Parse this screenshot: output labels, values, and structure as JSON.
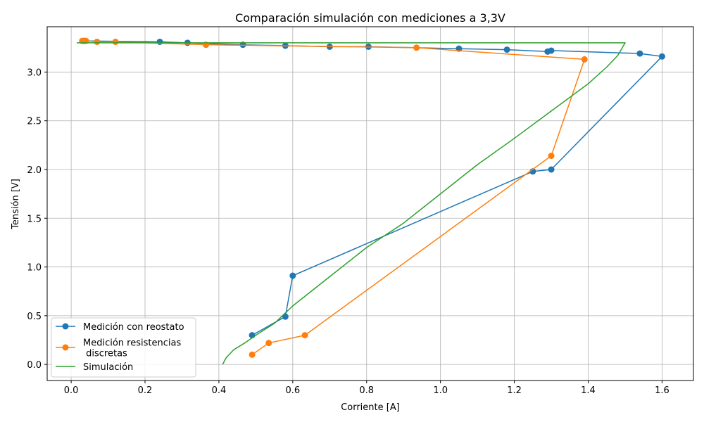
{
  "chart_data": {
    "type": "line",
    "title": "Comparación simulación con mediciones a 3,3V",
    "xlabel": "Corriente [A]",
    "ylabel": "Tensión [V]",
    "xlim": [
      -0.065,
      1.685
    ],
    "ylim": [
      -0.165,
      3.465
    ],
    "xticks": [
      "0.0",
      "0.2",
      "0.4",
      "0.6",
      "0.8",
      "1.0",
      "1.2",
      "1.4",
      "1.6"
    ],
    "yticks": [
      "0.0",
      "0.5",
      "1.0",
      "1.5",
      "2.0",
      "2.5",
      "3.0"
    ],
    "grid": true,
    "legend_position": "lower-left",
    "series": [
      {
        "name": "Medición con reostato",
        "color": "#1f77b4",
        "marker": "circle",
        "points": [
          [
            0.49,
            0.3
          ],
          [
            0.58,
            0.49
          ],
          [
            0.6,
            0.91
          ],
          [
            1.25,
            1.98
          ],
          [
            1.3,
            2.0
          ],
          [
            1.6,
            3.16
          ],
          [
            1.54,
            3.19
          ],
          [
            1.3,
            3.22
          ],
          [
            1.29,
            3.21
          ],
          [
            1.18,
            3.23
          ],
          [
            1.05,
            3.24
          ],
          [
            0.805,
            3.26
          ],
          [
            0.7,
            3.26
          ],
          [
            0.58,
            3.27
          ],
          [
            0.465,
            3.28
          ],
          [
            0.315,
            3.3
          ],
          [
            0.24,
            3.31
          ],
          [
            0.035,
            3.32
          ]
        ]
      },
      {
        "name": "Medición resistencias\n discretas",
        "color": "#ff7f0e",
        "marker": "circle",
        "points": [
          [
            0.49,
            0.1
          ],
          [
            0.535,
            0.22
          ],
          [
            0.633,
            0.3
          ],
          [
            1.3,
            2.14
          ],
          [
            1.39,
            3.13
          ],
          [
            0.935,
            3.25
          ],
          [
            0.365,
            3.28
          ],
          [
            0.12,
            3.31
          ],
          [
            0.07,
            3.31
          ],
          [
            0.04,
            3.32
          ],
          [
            0.03,
            3.32
          ]
        ]
      },
      {
        "name": "Simulación",
        "color": "#2ca02c",
        "marker": "none",
        "points": [
          [
            0.41,
            0.0
          ],
          [
            0.42,
            0.07
          ],
          [
            0.44,
            0.15
          ],
          [
            0.47,
            0.22
          ],
          [
            0.5,
            0.3
          ],
          [
            0.55,
            0.42
          ],
          [
            0.6,
            0.6
          ],
          [
            0.7,
            0.9
          ],
          [
            0.8,
            1.2
          ],
          [
            0.9,
            1.45
          ],
          [
            1.0,
            1.75
          ],
          [
            1.1,
            2.05
          ],
          [
            1.2,
            2.32
          ],
          [
            1.3,
            2.6
          ],
          [
            1.4,
            2.88
          ],
          [
            1.45,
            3.05
          ],
          [
            1.48,
            3.17
          ],
          [
            1.5,
            3.3
          ],
          [
            1.2,
            3.3
          ],
          [
            0.8,
            3.3
          ],
          [
            0.4,
            3.3
          ],
          [
            0.015,
            3.3
          ]
        ]
      }
    ]
  }
}
